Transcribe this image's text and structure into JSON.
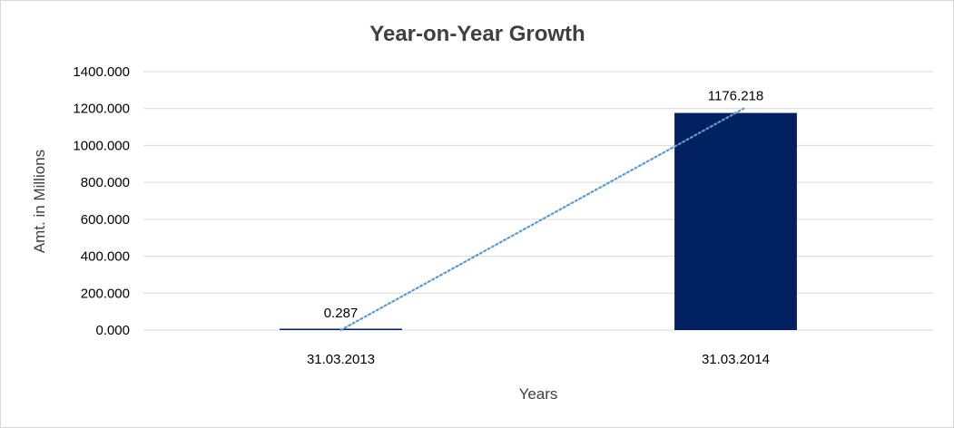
{
  "chart_data": {
    "type": "bar",
    "title": "Year-on-Year Growth",
    "xlabel": "Years",
    "ylabel": "Amt. in Millions",
    "categories": [
      "31.03.2013",
      "31.03.2014"
    ],
    "series": [
      {
        "values": [
          0.287,
          1176.218
        ],
        "data_labels": [
          "0.287",
          "1176.218"
        ],
        "color": "#002060"
      }
    ],
    "trendline": {
      "type": "linear",
      "style": "dotted",
      "color": "#5B9BD5"
    },
    "ylim": [
      0,
      1400
    ],
    "yticks": [
      0,
      200,
      400,
      600,
      800,
      1000,
      1200,
      1400
    ],
    "ytick_labels": [
      "0.000",
      "200.000",
      "400.000",
      "600.000",
      "800.000",
      "1000.000",
      "1200.000",
      "1400.000"
    ],
    "grid": true,
    "gridline_color": "#d9d9d9",
    "legend": "none"
  }
}
